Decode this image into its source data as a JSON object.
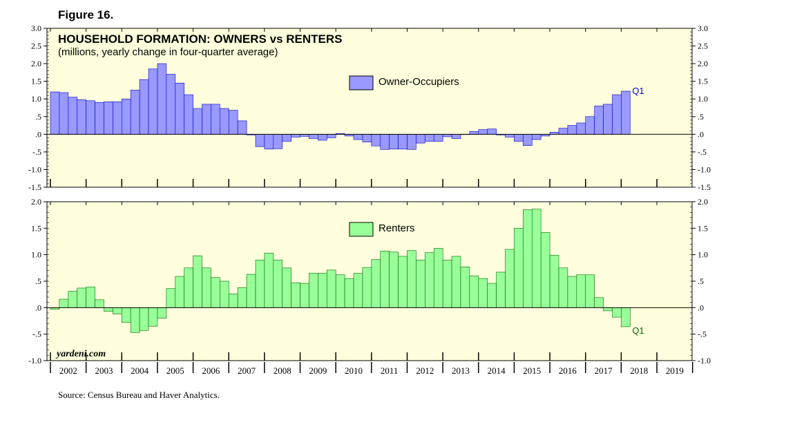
{
  "figure_label": "Figure 16.",
  "source": "Source: Census Bureau and Haver Analytics.",
  "brand": "yardeni.com",
  "colors": {
    "panel_bg": "#FFFFDD",
    "owners_bar": "#9999FF",
    "owners_edge": "#0000CC",
    "renters_bar": "#99FF99",
    "renters_edge": "#006600",
    "q_label": "#0000CC",
    "q_label_renters": "#006600"
  },
  "chart_data": [
    {
      "id": "owners",
      "type": "bar",
      "title": "HOUSEHOLD FORMATION: OWNERS vs RENTERS",
      "subtitle": "(millions, yearly change in four-quarter average)",
      "series_name": "Owner-Occupiers",
      "ylim": [
        -1.5,
        3.0
      ],
      "yticks": [
        -1.5,
        -1.0,
        -0.5,
        0.0,
        0.5,
        1.0,
        1.5,
        2.0,
        2.5,
        3.0
      ],
      "ytick_labels": [
        "-1.5",
        "-1.0",
        "-.5",
        ".0",
        ".5",
        "1.0",
        "1.5",
        "2.0",
        "2.5",
        "3.0"
      ],
      "start": "2002 Q1",
      "end_label": "Q1",
      "values": [
        1.2,
        1.18,
        1.05,
        0.98,
        0.95,
        0.9,
        0.92,
        0.92,
        1.0,
        1.25,
        1.55,
        1.85,
        2.0,
        1.7,
        1.45,
        1.12,
        0.73,
        0.85,
        0.85,
        0.73,
        0.68,
        0.38,
        -0.02,
        -0.35,
        -0.42,
        -0.41,
        -0.2,
        -0.08,
        -0.06,
        -0.12,
        -0.17,
        -0.1,
        0.02,
        -0.05,
        -0.15,
        -0.22,
        -0.33,
        -0.43,
        -0.42,
        -0.42,
        -0.43,
        -0.25,
        -0.2,
        -0.2,
        -0.07,
        -0.12,
        0.0,
        0.08,
        0.13,
        0.15,
        -0.02,
        -0.08,
        -0.2,
        -0.32,
        -0.15,
        -0.05,
        0.06,
        0.17,
        0.25,
        0.32,
        0.5,
        0.8,
        0.85,
        1.12,
        1.22
      ]
    },
    {
      "id": "renters",
      "type": "bar",
      "series_name": "Renters",
      "ylim": [
        -1.0,
        2.0
      ],
      "yticks": [
        -1.0,
        -0.5,
        0.0,
        0.5,
        1.0,
        1.5,
        2.0
      ],
      "ytick_labels": [
        "-1.0",
        "-.5",
        ".0",
        ".5",
        "1.0",
        "1.5",
        "2.0"
      ],
      "start": "2002 Q1",
      "end_label": "Q1",
      "values": [
        -0.03,
        0.16,
        0.31,
        0.37,
        0.39,
        0.15,
        -0.07,
        -0.12,
        -0.28,
        -0.47,
        -0.43,
        -0.35,
        -0.2,
        0.36,
        0.59,
        0.75,
        0.98,
        0.75,
        0.57,
        0.5,
        0.26,
        0.38,
        0.63,
        0.9,
        1.03,
        0.9,
        0.75,
        0.47,
        0.46,
        0.65,
        0.65,
        0.71,
        0.62,
        0.55,
        0.65,
        0.76,
        0.91,
        1.07,
        1.05,
        0.97,
        1.08,
        0.9,
        1.04,
        1.12,
        0.9,
        0.97,
        0.77,
        0.6,
        0.55,
        0.46,
        0.67,
        1.1,
        1.5,
        1.85,
        1.86,
        1.42,
        0.99,
        0.75,
        0.59,
        0.62,
        0.62,
        0.19,
        -0.06,
        -0.18,
        -0.36
      ]
    }
  ],
  "x_axis": {
    "years": [
      "2002",
      "2003",
      "2004",
      "2005",
      "2006",
      "2007",
      "2008",
      "2009",
      "2010",
      "2011",
      "2012",
      "2013",
      "2014",
      "2015",
      "2016",
      "2017",
      "2018",
      "2019"
    ]
  }
}
